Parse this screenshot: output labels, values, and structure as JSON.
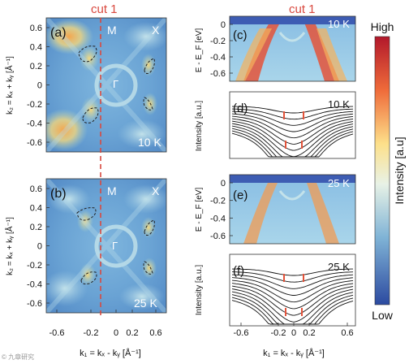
{
  "cut_label": "cut 1",
  "panels": {
    "a": {
      "label": "(a)",
      "temp": "10 K",
      "M": "M",
      "X": "X",
      "G": "Γ"
    },
    "b": {
      "label": "(b)",
      "temp": "25 K",
      "M": "M",
      "X": "X",
      "G": "Γ"
    },
    "c": {
      "label": "(c)",
      "temp": "10 K"
    },
    "d": {
      "label": "(d)",
      "temp": "10 K"
    },
    "e": {
      "label": "(e)",
      "temp": "25 K"
    },
    "f": {
      "label": "(f)",
      "temp": "25 K"
    }
  },
  "left_ticks_y": [
    "0.6",
    "0.4",
    "0.2",
    "0",
    "-0.2",
    "-0.4",
    "-0.6"
  ],
  "left_ticks_x": [
    "-0.6",
    "-0.2",
    "0",
    "0.2",
    "0.6"
  ],
  "left_ylabel": "k₂ = kₓ + kᵧ [Å⁻¹]",
  "left_xlabel": "k₁ = kₓ - kᵧ [Å⁻¹]",
  "right_ticks_y": [
    "0",
    "-0.2",
    "-0.4",
    "-0.6"
  ],
  "right_ticks_x": [
    "-0.6",
    "-0.2",
    "0",
    "0.2",
    "0.6"
  ],
  "right_ylabel_energy": "E - E_F [eV]",
  "right_ylabel_intensity": "Intensity [a.u.]",
  "right_xlabel": "k₁ = kₓ - kᵧ [Å⁻¹]",
  "colorbar": {
    "high": "High",
    "low": "Low",
    "label": "Intensity [a.u]"
  },
  "watermark": "© 九章研究"
}
